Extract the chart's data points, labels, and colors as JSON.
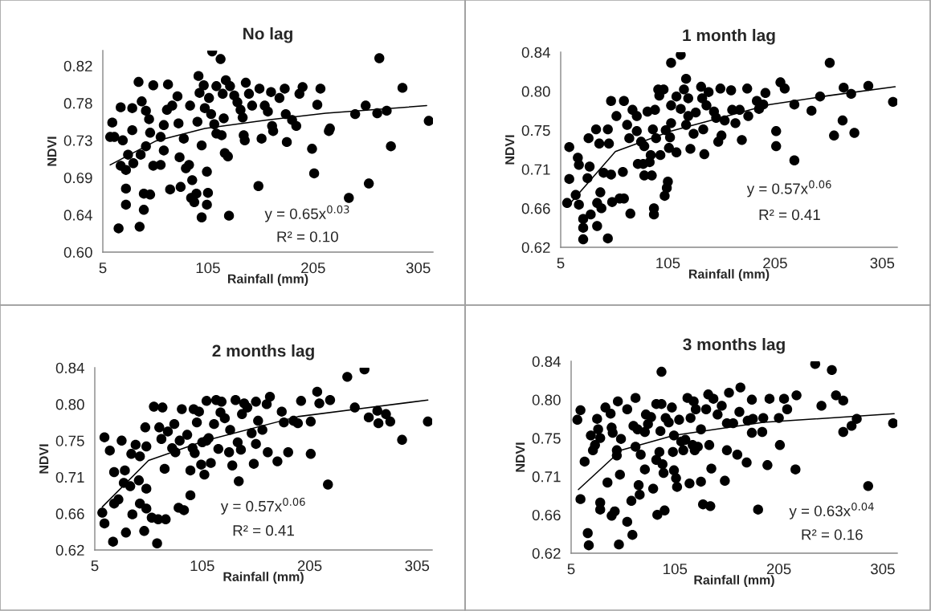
{
  "chart_data": [
    {
      "type": "scatter",
      "title": "No lag",
      "xlabel": "Rainfall (mm)",
      "ylabel": "NDVI",
      "marker": "circle",
      "grid": false,
      "xlim": [
        5,
        319
      ],
      "xticks": [
        5,
        105,
        205,
        305
      ],
      "ylim": [
        0.6,
        0.838
      ],
      "yticks": [
        {
          "value": 0.6,
          "label": "0.60"
        },
        {
          "value": 0.644,
          "label": "0.64"
        },
        {
          "value": 0.688,
          "label": "0.69"
        },
        {
          "value": 0.732,
          "label": "0.73"
        },
        {
          "value": 0.776,
          "label": "0.78"
        },
        {
          "value": 0.82,
          "label": "0.82"
        }
      ],
      "annotations": [
        "y = 0.65x$^{0.03}$",
        "R² = 0.10"
      ],
      "series": [
        {
          "color": "#000000",
          "x": [
            12,
            14,
            16,
            20,
            22,
            22,
            24,
            27,
            27,
            27,
            29,
            33,
            33,
            34,
            39,
            40,
            41,
            42,
            44,
            44,
            46,
            46,
            49,
            50,
            50,
            53,
            53,
            60,
            60,
            63,
            63,
            66,
            67,
            69,
            71,
            76,
            77,
            78,
            79,
            82,
            84,
            87,
            88,
            90,
            89,
            92,
            94,
            95,
            96,
            97,
            99,
            99,
            101,
            102,
            104,
            104,
            105,
            106,
            108,
            109,
            111,
            113,
            113,
            117,
            118,
            119,
            120,
            121,
            122,
            124,
            125,
            126,
            130,
            133,
            136,
            138,
            139,
            140,
            141,
            144,
            147,
            153,
            154,
            156,
            159,
            162,
            165,
            166,
            167,
            173,
            178,
            179,
            180,
            185,
            189,
            192,
            195,
            204,
            206,
            209,
            212,
            220,
            221,
            239,
            245,
            255,
            258,
            266,
            268,
            275,
            279,
            290,
            315
          ],
          "values": [
            0.736,
            0.753,
            0.736,
            0.628,
            0.771,
            0.702,
            0.732,
            0.697,
            0.675,
            0.656,
            0.715,
            0.744,
            0.77,
            0.705,
            0.801,
            0.63,
            0.715,
            0.778,
            0.65,
            0.669,
            0.767,
            0.725,
            0.757,
            0.668,
            0.741,
            0.797,
            0.702,
            0.703,
            0.736,
            0.72,
            0.75,
            0.768,
            0.798,
            0.674,
            0.773,
            0.784,
            0.752,
            0.712,
            0.677,
            0.734,
            0.699,
            0.703,
            0.773,
            0.685,
            0.664,
            0.659,
            0.669,
            0.754,
            0.808,
            0.788,
            0.726,
            0.641,
            0.797,
            0.77,
            0.656,
            0.695,
            0.67,
            0.782,
            0.763,
            0.837,
            0.751,
            0.796,
            0.74,
            0.828,
            0.738,
            0.787,
            0.758,
            0.717,
            0.803,
            0.713,
            0.643,
            0.796,
            0.785,
            0.777,
            0.768,
            0.759,
            0.738,
            0.732,
            0.8,
            0.787,
            0.773,
            0.678,
            0.793,
            0.734,
            0.773,
            0.766,
            0.789,
            0.749,
            0.743,
            0.782,
            0.793,
            0.763,
            0.73,
            0.756,
            0.749,
            0.787,
            0.795,
            0.722,
            0.693,
            0.774,
            0.793,
            0.743,
            0.746,
            0.664,
            0.763,
            0.773,
            0.681,
            0.764,
            0.829,
            0.767,
            0.725,
            0.794,
            0.755
          ]
        },
        {
          "type": "line",
          "marker": "none",
          "color": "#000000",
          "x": [
            12,
            55,
            102,
            161,
            217,
            313
          ],
          "values": [
            0.703,
            0.731,
            0.746,
            0.756,
            0.764,
            0.773
          ]
        }
      ]
    },
    {
      "type": "scatter",
      "title": "1 month lag",
      "xlabel": "Rainfall (mm)",
      "ylabel": "NDVI",
      "marker": "circle",
      "grid": false,
      "xlim": [
        5,
        319
      ],
      "xticks": [
        5,
        105,
        205,
        305
      ],
      "ylim": [
        0.62,
        0.84
      ],
      "yticks": [
        {
          "value": 0.62,
          "label": "0.62"
        },
        {
          "value": 0.664,
          "label": "0.66"
        },
        {
          "value": 0.708,
          "label": "0.71"
        },
        {
          "value": 0.752,
          "label": "0.75"
        },
        {
          "value": 0.796,
          "label": "0.80"
        },
        {
          "value": 0.84,
          "label": "0.84"
        }
      ],
      "annotations": [
        "y = 0.57x$^{0.06}$",
        "R² = 0.41"
      ],
      "series": [
        {
          "color": "#000000",
          "x": [
            11,
            13,
            13,
            19,
            21,
            22,
            22,
            26,
            26,
            26,
            30,
            31,
            32,
            33,
            38,
            39,
            39,
            41,
            42,
            43,
            45,
            49,
            49,
            50,
            52,
            52,
            53,
            57,
            60,
            63,
            64,
            64,
            67,
            69,
            70,
            72,
            76,
            76,
            77,
            80,
            82,
            83,
            83,
            86,
            88,
            89,
            90,
            91,
            92,
            92,
            93,
            94,
            96,
            97,
            98,
            101,
            102,
            103,
            104,
            105,
            106,
            107,
            108,
            108,
            108,
            113,
            113,
            117,
            117,
            120,
            122,
            122,
            124,
            124,
            126,
            129,
            131,
            136,
            137,
            138,
            139,
            141,
            143,
            148,
            150,
            152,
            154,
            155,
            158,
            164,
            165,
            168,
            172,
            174,
            179,
            180,
            188,
            190,
            194,
            196,
            206,
            206,
            210,
            214,
            223,
            223,
            239,
            247,
            256,
            260,
            268,
            269,
            276,
            279,
            292,
            315
          ],
          "values": [
            0.67,
            0.733,
            0.697,
            0.679,
            0.721,
            0.668,
            0.713,
            0.652,
            0.642,
            0.629,
            0.698,
            0.743,
            0.711,
            0.657,
            0.753,
            0.644,
            0.67,
            0.737,
            0.682,
            0.664,
            0.704,
            0.753,
            0.63,
            0.737,
            0.785,
            0.702,
            0.671,
            0.768,
            0.675,
            0.705,
            0.675,
            0.785,
            0.758,
            0.743,
            0.658,
            0.775,
            0.751,
            0.768,
            0.714,
            0.739,
            0.714,
            0.734,
            0.701,
            0.773,
            0.716,
            0.724,
            0.701,
            0.753,
            0.664,
            0.657,
            0.775,
            0.743,
            0.798,
            0.791,
            0.724,
            0.798,
            0.678,
            0.752,
            0.687,
            0.694,
            0.732,
            0.744,
            0.78,
            0.76,
            0.828,
            0.727,
            0.79,
            0.837,
            0.776,
            0.798,
            0.81,
            0.758,
            0.768,
            0.788,
            0.731,
            0.748,
            0.772,
            0.801,
            0.788,
            0.753,
            0.725,
            0.78,
            0.795,
            0.773,
            0.766,
            0.739,
            0.799,
            0.746,
            0.763,
            0.797,
            0.775,
            0.76,
            0.775,
            0.741,
            0.799,
            0.768,
            0.785,
            0.776,
            0.781,
            0.794,
            0.751,
            0.734,
            0.806,
            0.799,
            0.718,
            0.781,
            0.774,
            0.79,
            0.828,
            0.746,
            0.763,
            0.8,
            0.793,
            0.749,
            0.802,
            0.784
          ]
        },
        {
          "type": "line",
          "marker": "none",
          "color": "#000000",
          "x": [
            12,
            56,
            108,
            200,
            255,
            317
          ],
          "values": [
            0.667,
            0.728,
            0.751,
            0.781,
            0.791,
            0.801
          ]
        }
      ]
    },
    {
      "type": "scatter",
      "title": "2 months lag",
      "xlabel": "Rainfall (mm)",
      "ylabel": "NDVI",
      "marker": "circle",
      "grid": false,
      "xlim": [
        5,
        319
      ],
      "xticks": [
        5,
        105,
        205,
        305
      ],
      "ylim": [
        0.62,
        0.84
      ],
      "yticks": [
        {
          "value": 0.62,
          "label": "0.62"
        },
        {
          "value": 0.664,
          "label": "0.66"
        },
        {
          "value": 0.708,
          "label": "0.71"
        },
        {
          "value": 0.752,
          "label": "0.75"
        },
        {
          "value": 0.796,
          "label": "0.80"
        },
        {
          "value": 0.84,
          "label": "0.84"
        }
      ],
      "annotations": [
        "y = 0.57x$^{0.06}$",
        "R² = 0.41"
      ],
      "series": [
        {
          "color": "#000000",
          "x": [
            12,
            14,
            14,
            19,
            22,
            23,
            23,
            27,
            30,
            33,
            34,
            32,
            38,
            39,
            40,
            43,
            46,
            47,
            47,
            51,
            52,
            53,
            53,
            53,
            58,
            60,
            63,
            64,
            65,
            67,
            68,
            70,
            71,
            73,
            77,
            79,
            80,
            83,
            84,
            86,
            88,
            91,
            94,
            94,
            96,
            97,
            98,
            100,
            102,
            104,
            105,
            107,
            109,
            109,
            111,
            113,
            116,
            118,
            120,
            122,
            123,
            126,
            130,
            131,
            133,
            136,
            138,
            139,
            141,
            142,
            144,
            147,
            151,
            153,
            155,
            155,
            157,
            161,
            165,
            166,
            168,
            175,
            179,
            181,
            185,
            190,
            194,
            197,
            206,
            206,
            212,
            214,
            222,
            224,
            240,
            247,
            256,
            260,
            268,
            269,
            276,
            280,
            291,
            315
          ],
          "values": [
            0.665,
            0.652,
            0.756,
            0.74,
            0.63,
            0.714,
            0.676,
            0.681,
            0.752,
            0.716,
            0.641,
            0.701,
            0.697,
            0.736,
            0.663,
            0.747,
            0.704,
            0.676,
            0.733,
            0.643,
            0.768,
            0.67,
            0.745,
            0.694,
            0.659,
            0.793,
            0.628,
            0.657,
            0.768,
            0.754,
            0.792,
            0.718,
            0.657,
            0.763,
            0.743,
            0.772,
            0.738,
            0.671,
            0.752,
            0.79,
            0.668,
            0.759,
            0.716,
            0.686,
            0.743,
            0.79,
            0.737,
            0.774,
            0.787,
            0.723,
            0.75,
            0.711,
            0.8,
            0.752,
            0.755,
            0.725,
            0.772,
            0.801,
            0.742,
            0.786,
            0.799,
            0.779,
            0.738,
            0.765,
            0.722,
            0.801,
            0.75,
            0.703,
            0.741,
            0.784,
            0.797,
            0.792,
            0.761,
            0.724,
            0.799,
            0.748,
            0.776,
            0.765,
            0.796,
            0.738,
            0.805,
            0.727,
            0.787,
            0.774,
            0.738,
            0.776,
            0.773,
            0.8,
            0.775,
            0.736,
            0.811,
            0.797,
            0.699,
            0.801,
            0.829,
            0.792,
            0.838,
            0.78,
            0.788,
            0.773,
            0.784,
            0.775,
            0.753,
            0.775
          ]
        },
        {
          "type": "line",
          "marker": "none",
          "color": "#000000",
          "x": [
            12,
            55,
            108,
            194,
            315
          ],
          "values": [
            0.672,
            0.728,
            0.752,
            0.781,
            0.801
          ]
        }
      ]
    },
    {
      "type": "scatter",
      "title": "3 months lag",
      "xlabel": "Rainfall (mm)",
      "ylabel": "NDVI",
      "marker": "circle",
      "grid": false,
      "xlim": [
        5,
        319
      ],
      "xticks": [
        5,
        105,
        205,
        305
      ],
      "ylim": [
        0.62,
        0.84
      ],
      "yticks": [
        {
          "value": 0.62,
          "label": "0.62"
        },
        {
          "value": 0.664,
          "label": "0.66"
        },
        {
          "value": 0.708,
          "label": "0.71"
        },
        {
          "value": 0.752,
          "label": "0.75"
        },
        {
          "value": 0.796,
          "label": "0.80"
        },
        {
          "value": 0.84,
          "label": "0.84"
        }
      ],
      "annotations": [
        "y = 0.63x$^{0.04}$",
        "R² = 0.16"
      ],
      "series": [
        {
          "color": "#000000",
          "x": [
            11,
            14,
            14,
            18,
            21,
            22,
            24,
            26,
            28,
            30,
            31,
            33,
            33,
            33,
            38,
            40,
            43,
            44,
            44,
            45,
            47,
            49,
            49,
            50,
            51,
            52,
            53,
            59,
            59,
            63,
            64,
            65,
            67,
            67,
            69,
            70,
            71,
            72,
            76,
            76,
            77,
            79,
            82,
            84,
            87,
            87,
            88,
            90,
            91,
            92,
            92,
            93,
            94,
            95,
            96,
            99,
            102,
            103,
            104,
            104,
            106,
            107,
            109,
            111,
            113,
            115,
            117,
            119,
            120,
            122,
            123,
            124,
            125,
            127,
            130,
            130,
            132,
            135,
            137,
            138,
            139,
            140,
            142,
            146,
            150,
            153,
            155,
            155,
            157,
            161,
            165,
            168,
            167,
            174,
            175,
            179,
            179,
            180,
            185,
            189,
            190,
            194,
            196,
            205,
            206,
            210,
            213,
            221,
            222,
            240,
            246,
            256,
            260,
            267,
            267,
            275,
            280,
            291,
            315
          ],
          "values": [
            0.773,
            0.784,
            0.682,
            0.725,
            0.643,
            0.629,
            0.755,
            0.738,
            0.744,
            0.774,
            0.762,
            0.752,
            0.67,
            0.678,
            0.787,
            0.701,
            0.78,
            0.764,
            0.663,
            0.758,
            0.668,
            0.738,
            0.732,
            0.794,
            0.63,
            0.71,
            0.751,
            0.785,
            0.656,
            0.68,
            0.641,
            0.766,
            0.742,
            0.798,
            0.762,
            0.698,
            0.687,
            0.733,
            0.759,
            0.716,
            0.779,
            0.768,
            0.776,
            0.694,
            0.727,
            0.791,
            0.664,
            0.736,
            0.76,
            0.791,
            0.828,
            0.722,
            0.712,
            0.669,
            0.775,
            0.77,
            0.787,
            0.736,
            0.715,
            0.755,
            0.706,
            0.696,
            0.773,
            0.748,
            0.738,
            0.75,
            0.798,
            0.7,
            0.775,
            0.744,
            0.794,
            0.738,
            0.785,
            0.742,
            0.762,
            0.702,
            0.676,
            0.785,
            0.802,
            0.744,
            0.674,
            0.717,
            0.797,
            0.779,
            0.789,
            0.703,
            0.738,
            0.769,
            0.804,
            0.769,
            0.733,
            0.81,
            0.782,
            0.724,
            0.772,
            0.796,
            0.758,
            0.774,
            0.67,
            0.759,
            0.775,
            0.721,
            0.797,
            0.775,
            0.744,
            0.797,
            0.785,
            0.716,
            0.801,
            0.837,
            0.789,
            0.83,
            0.801,
            0.795,
            0.759,
            0.766,
            0.774,
            0.697,
            0.769
          ]
        },
        {
          "type": "line",
          "marker": "none",
          "color": "#000000",
          "x": [
            12,
            53,
            104,
            190,
            316
          ],
          "values": [
            0.693,
            0.738,
            0.755,
            0.77,
            0.78
          ]
        }
      ]
    }
  ]
}
